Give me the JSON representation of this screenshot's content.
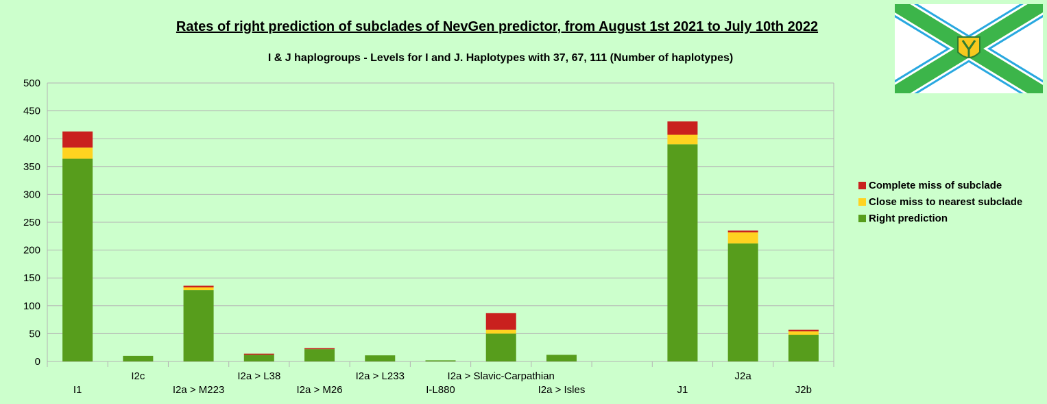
{
  "chart_data": {
    "type": "bar",
    "stacked": true,
    "title": "Rates of right prediction of subclades of NevGen predictor, from August 1st 2021 to July 10th 2022",
    "subtitle": "I & J haplogroups - Levels for I and J. Haplotypes with 37, 67, 111 (Number of haplotypes)",
    "categories": [
      "I1",
      "I2c",
      "I2a > M223",
      "I2a > L38",
      "I2a > M26",
      "I2a > L233",
      "I-L880",
      "I2a > Slavic-Carpathian",
      "I2a > Isles",
      "",
      "J1",
      "J2a",
      "J2b"
    ],
    "series": [
      {
        "name": "Right prediction",
        "color": "#579d1c",
        "values": [
          364,
          10,
          128,
          12,
          22,
          11,
          2,
          50,
          12,
          0,
          390,
          212,
          48
        ]
      },
      {
        "name": "Close miss to nearest subclade",
        "color": "#ffd320",
        "values": [
          20,
          0,
          5,
          0,
          0,
          0,
          0,
          7,
          0,
          0,
          17,
          20,
          6
        ]
      },
      {
        "name": "Complete miss of subclade",
        "color": "#c9211e",
        "values": [
          29,
          0,
          3,
          2,
          2,
          0,
          0,
          30,
          0,
          0,
          24,
          3,
          3
        ]
      }
    ],
    "ylim": [
      0,
      500
    ],
    "yticks": [
      0,
      50,
      100,
      150,
      200,
      250,
      300,
      350,
      400,
      450,
      500
    ],
    "grid": true,
    "legend_position": "right"
  },
  "logo": {
    "name": "flag-icon",
    "colors": {
      "green": "#3cb54a",
      "blue": "#29a8e0",
      "yellow": "#f7c91e"
    }
  }
}
